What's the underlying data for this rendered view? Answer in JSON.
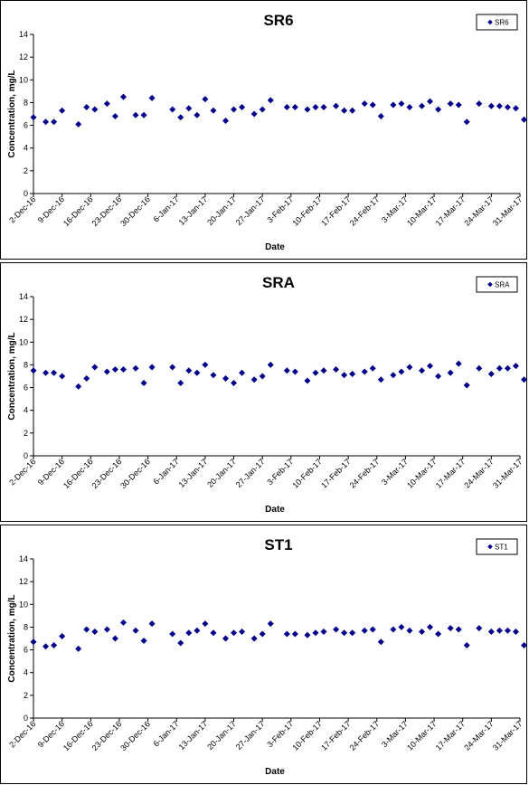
{
  "chart_data": [
    {
      "type": "scatter",
      "title": "SR6",
      "xlabel": "Date",
      "ylabel": "Concentration, mg/L",
      "ylim": [
        0,
        14
      ],
      "yticks": [
        0,
        2,
        4,
        6,
        8,
        10,
        12,
        14
      ],
      "xlim": [
        "2016-12-02",
        "2017-03-31"
      ],
      "xtick_labels": [
        "2-Dec-16",
        "9-Dec-16",
        "16-Dec-16",
        "23-Dec-16",
        "30-Dec-16",
        "6-Jan-17",
        "13-Jan-17",
        "20-Jan-17",
        "27-Jan-17",
        "3-Feb-17",
        "10-Feb-17",
        "17-Feb-17",
        "24-Feb-17",
        "3-Mar-17",
        "10-Mar-17",
        "17-Mar-17",
        "24-Mar-17",
        "31-Mar-17"
      ],
      "legend": "top-right",
      "color": "#00008B",
      "series": [
        {
          "name": "SR6",
          "x": [
            "2016-12-02",
            "2016-12-05",
            "2016-12-07",
            "2016-12-09",
            "2016-12-13",
            "2016-12-15",
            "2016-12-17",
            "2016-12-20",
            "2016-12-22",
            "2016-12-24",
            "2016-12-27",
            "2016-12-29",
            "2016-12-31",
            "2017-01-05",
            "2017-01-07",
            "2017-01-09",
            "2017-01-11",
            "2017-01-13",
            "2017-01-15",
            "2017-01-18",
            "2017-01-20",
            "2017-01-22",
            "2017-01-25",
            "2017-01-27",
            "2017-01-29",
            "2017-02-02",
            "2017-02-04",
            "2017-02-07",
            "2017-02-09",
            "2017-02-11",
            "2017-02-14",
            "2017-02-16",
            "2017-02-18",
            "2017-02-21",
            "2017-02-23",
            "2017-02-25",
            "2017-02-28",
            "2017-03-02",
            "2017-03-04",
            "2017-03-07",
            "2017-03-09",
            "2017-03-11",
            "2017-03-14",
            "2017-03-16",
            "2017-03-18",
            "2017-03-21",
            "2017-03-24",
            "2017-03-26",
            "2017-03-28",
            "2017-03-30",
            "2017-04-01"
          ],
          "y": [
            6.7,
            6.3,
            6.3,
            7.3,
            6.1,
            7.6,
            7.4,
            7.9,
            6.8,
            8.5,
            6.9,
            6.9,
            8.4,
            7.4,
            6.7,
            7.5,
            6.9,
            8.3,
            7.3,
            6.4,
            7.4,
            7.6,
            7.0,
            7.4,
            8.2,
            7.6,
            7.6,
            7.4,
            7.6,
            7.6,
            7.7,
            7.3,
            7.3,
            7.9,
            7.8,
            6.8,
            7.8,
            7.9,
            7.6,
            7.7,
            8.1,
            7.4,
            7.9,
            7.8,
            6.3,
            7.9,
            7.7,
            7.7,
            7.6,
            7.5,
            6.5
          ]
        }
      ]
    },
    {
      "type": "scatter",
      "title": "SRA",
      "xlabel": "Date",
      "ylabel": "Concentration, mg/L",
      "ylim": [
        0,
        14
      ],
      "yticks": [
        0,
        2,
        4,
        6,
        8,
        10,
        12,
        14
      ],
      "xlim": [
        "2016-12-02",
        "2017-03-31"
      ],
      "xtick_labels": [
        "2-Dec-16",
        "9-Dec-16",
        "16-Dec-16",
        "23-Dec-16",
        "30-Dec-16",
        "6-Jan-17",
        "13-Jan-17",
        "20-Jan-17",
        "27-Jan-17",
        "3-Feb-17",
        "10-Feb-17",
        "17-Feb-17",
        "24-Feb-17",
        "3-Mar-17",
        "10-Mar-17",
        "17-Mar-17",
        "24-Mar-17",
        "31-Mar-17"
      ],
      "legend": "top-right",
      "color": "#00008B",
      "series": [
        {
          "name": "SRA",
          "x": [
            "2016-12-02",
            "2016-12-05",
            "2016-12-07",
            "2016-12-09",
            "2016-12-13",
            "2016-12-15",
            "2016-12-17",
            "2016-12-20",
            "2016-12-22",
            "2016-12-24",
            "2016-12-27",
            "2016-12-29",
            "2016-12-31",
            "2017-01-05",
            "2017-01-07",
            "2017-01-09",
            "2017-01-11",
            "2017-01-13",
            "2017-01-15",
            "2017-01-18",
            "2017-01-20",
            "2017-01-22",
            "2017-01-25",
            "2017-01-27",
            "2017-01-29",
            "2017-02-02",
            "2017-02-04",
            "2017-02-07",
            "2017-02-09",
            "2017-02-11",
            "2017-02-14",
            "2017-02-16",
            "2017-02-18",
            "2017-02-21",
            "2017-02-23",
            "2017-02-25",
            "2017-02-28",
            "2017-03-02",
            "2017-03-04",
            "2017-03-07",
            "2017-03-09",
            "2017-03-11",
            "2017-03-14",
            "2017-03-16",
            "2017-03-18",
            "2017-03-21",
            "2017-03-24",
            "2017-03-26",
            "2017-03-28",
            "2017-03-30",
            "2017-04-01"
          ],
          "y": [
            7.5,
            7.3,
            7.3,
            7.0,
            6.1,
            6.8,
            7.8,
            7.4,
            7.6,
            7.6,
            7.7,
            6.4,
            7.8,
            7.8,
            6.4,
            7.5,
            7.3,
            8.0,
            7.1,
            6.8,
            6.4,
            7.3,
            6.7,
            7.0,
            8.0,
            7.5,
            7.4,
            6.6,
            7.3,
            7.5,
            7.6,
            7.1,
            7.2,
            7.4,
            7.7,
            6.7,
            7.1,
            7.4,
            7.8,
            7.5,
            7.9,
            7.0,
            7.3,
            8.1,
            6.2,
            7.7,
            7.2,
            7.7,
            7.7,
            7.9,
            6.7
          ]
        }
      ]
    },
    {
      "type": "scatter",
      "title": "ST1",
      "xlabel": "Date",
      "ylabel": "Concentration, mg/L",
      "ylim": [
        0,
        14
      ],
      "yticks": [
        0,
        2,
        4,
        6,
        8,
        10,
        12,
        14
      ],
      "xlim": [
        "2016-12-02",
        "2017-03-31"
      ],
      "xtick_labels": [
        "2-Dec-16",
        "9-Dec-16",
        "16-Dec-16",
        "23-Dec-16",
        "30-Dec-16",
        "6-Jan-17",
        "13-Jan-17",
        "20-Jan-17",
        "27-Jan-17",
        "3-Feb-17",
        "10-Feb-17",
        "17-Feb-17",
        "24-Feb-17",
        "3-Mar-17",
        "10-Mar-17",
        "17-Mar-17",
        "24-Mar-17",
        "31-Mar-17"
      ],
      "legend": "top-right",
      "color": "#00008B",
      "series": [
        {
          "name": "ST1",
          "x": [
            "2016-12-02",
            "2016-12-05",
            "2016-12-07",
            "2016-12-09",
            "2016-12-13",
            "2016-12-15",
            "2016-12-17",
            "2016-12-20",
            "2016-12-22",
            "2016-12-24",
            "2016-12-27",
            "2016-12-29",
            "2016-12-31",
            "2017-01-05",
            "2017-01-07",
            "2017-01-09",
            "2017-01-11",
            "2017-01-13",
            "2017-01-15",
            "2017-01-18",
            "2017-01-20",
            "2017-01-22",
            "2017-01-25",
            "2017-01-27",
            "2017-01-29",
            "2017-02-02",
            "2017-02-04",
            "2017-02-07",
            "2017-02-09",
            "2017-02-11",
            "2017-02-14",
            "2017-02-16",
            "2017-02-18",
            "2017-02-21",
            "2017-02-23",
            "2017-02-25",
            "2017-02-28",
            "2017-03-02",
            "2017-03-04",
            "2017-03-07",
            "2017-03-09",
            "2017-03-11",
            "2017-03-14",
            "2017-03-16",
            "2017-03-18",
            "2017-03-21",
            "2017-03-24",
            "2017-03-26",
            "2017-03-28",
            "2017-03-30",
            "2017-04-01"
          ],
          "y": [
            6.7,
            6.3,
            6.4,
            7.2,
            6.1,
            7.8,
            7.6,
            7.8,
            7.0,
            8.4,
            7.7,
            6.8,
            8.3,
            7.4,
            6.6,
            7.5,
            7.7,
            8.3,
            7.5,
            7.0,
            7.5,
            7.6,
            7.0,
            7.4,
            8.3,
            7.4,
            7.4,
            7.3,
            7.5,
            7.6,
            7.8,
            7.5,
            7.5,
            7.7,
            7.8,
            6.7,
            7.8,
            8.0,
            7.7,
            7.6,
            8.0,
            7.4,
            7.9,
            7.8,
            6.4,
            7.9,
            7.6,
            7.7,
            7.7,
            7.6,
            6.4
          ]
        }
      ]
    }
  ]
}
